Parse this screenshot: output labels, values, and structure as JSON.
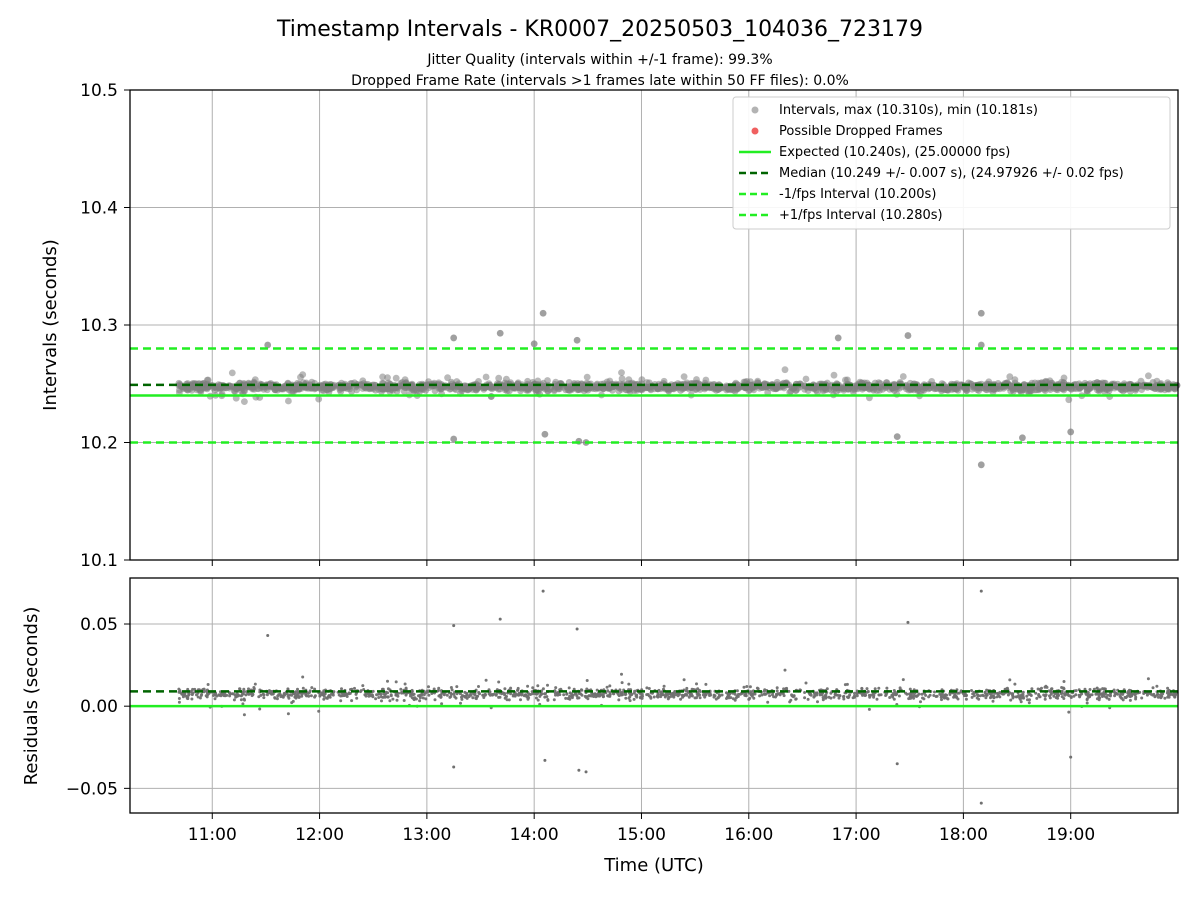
{
  "chart_data": [
    {
      "type": "scatter",
      "title": "Timestamp Intervals - KR0007_20250503_104036_723179",
      "subtitle_lines": [
        "Jitter Quality (intervals within +/-1 frame): 99.3%",
        "Dropped Frame Rate (intervals >1 frames late within 50 FF files): 0.0%"
      ],
      "xlabel": "",
      "ylabel": "Intervals (seconds)",
      "xlim": [
        "10:14",
        "20:00"
      ],
      "ylim": [
        10.1,
        10.5
      ],
      "yticks": [
        10.1,
        10.2,
        10.3,
        10.4,
        10.5
      ],
      "ytick_labels": [
        "10.1",
        "10.2",
        "10.3",
        "10.4",
        "10.5"
      ],
      "xticks": [
        "11:00",
        "12:00",
        "13:00",
        "14:00",
        "15:00",
        "16:00",
        "17:00",
        "18:00",
        "19:00"
      ],
      "grid": true,
      "legend_position": "top-right",
      "series": [
        {
          "name": "Intervals, max (10.310s), min (10.181s)",
          "kind": "scatter",
          "color": "#808080",
          "data_range": {
            "x_start": "10:41",
            "x_end": "20:00"
          },
          "typical_band": [
            10.235,
            10.26
          ],
          "outliers": [
            {
              "x": "14:05",
              "y": 10.31
            },
            {
              "x": "18:10",
              "y": 10.31
            },
            {
              "x": "18:10",
              "y": 10.181
            },
            {
              "x": "13:41",
              "y": 10.293
            },
            {
              "x": "17:29",
              "y": 10.291
            },
            {
              "x": "16:50",
              "y": 10.289
            },
            {
              "x": "13:15",
              "y": 10.289
            },
            {
              "x": "14:24",
              "y": 10.287
            },
            {
              "x": "14:00",
              "y": 10.284
            },
            {
              "x": "18:10",
              "y": 10.283
            },
            {
              "x": "11:31",
              "y": 10.283
            },
            {
              "x": "14:25",
              "y": 10.201
            },
            {
              "x": "14:29",
              "y": 10.2
            },
            {
              "x": "13:15",
              "y": 10.203
            },
            {
              "x": "17:23",
              "y": 10.205
            },
            {
              "x": "18:33",
              "y": 10.204
            },
            {
              "x": "14:06",
              "y": 10.207
            },
            {
              "x": "19:00",
              "y": 10.209
            }
          ]
        },
        {
          "name": "Possible Dropped Frames",
          "kind": "scatter",
          "color": "#f06060",
          "points": []
        },
        {
          "name": "Expected (10.240s), (25.00000 fps)",
          "kind": "hline",
          "y": 10.24,
          "color": "#22ee22",
          "style": "solid"
        },
        {
          "name": "Median (10.249 +/- 0.007 s), (24.97926 +/- 0.02 fps)",
          "kind": "hline",
          "y": 10.249,
          "color": "#006400",
          "style": "dashed"
        },
        {
          "name": "-1/fps Interval (10.200s)",
          "kind": "hline",
          "y": 10.2,
          "color": "#22ee22",
          "style": "dashed"
        },
        {
          "name": "+1/fps Interval (10.280s)",
          "kind": "hline",
          "y": 10.28,
          "color": "#22ee22",
          "style": "dashed"
        }
      ]
    },
    {
      "type": "scatter",
      "xlabel": "Time (UTC)",
      "ylabel": "Residuals (seconds)",
      "xlim": [
        "10:14",
        "20:00"
      ],
      "ylim": [
        -0.065,
        0.078
      ],
      "yticks": [
        -0.05,
        0.0,
        0.05
      ],
      "ytick_labels": [
        "−0.05",
        "0.00",
        "0.05"
      ],
      "xticks": [
        "11:00",
        "12:00",
        "13:00",
        "14:00",
        "15:00",
        "16:00",
        "17:00",
        "18:00",
        "19:00"
      ],
      "grid": true,
      "series": [
        {
          "kind": "scatter",
          "color": "#707070",
          "data_range": {
            "x_start": "10:41",
            "x_end": "20:00"
          },
          "typical_band": [
            -0.005,
            0.02
          ],
          "outliers": [
            {
              "x": "14:05",
              "y": 0.07
            },
            {
              "x": "18:10",
              "y": 0.07
            },
            {
              "x": "18:10",
              "y": -0.059
            },
            {
              "x": "13:41",
              "y": 0.053
            },
            {
              "x": "17:29",
              "y": 0.051
            },
            {
              "x": "13:15",
              "y": 0.049
            },
            {
              "x": "14:24",
              "y": 0.047
            },
            {
              "x": "11:31",
              "y": 0.043
            },
            {
              "x": "14:25",
              "y": -0.039
            },
            {
              "x": "14:29",
              "y": -0.04
            },
            {
              "x": "13:15",
              "y": -0.037
            },
            {
              "x": "17:23",
              "y": -0.035
            },
            {
              "x": "19:00",
              "y": -0.031
            },
            {
              "x": "14:06",
              "y": -0.033
            }
          ]
        },
        {
          "kind": "hline",
          "y": 0.0,
          "color": "#22ee22",
          "style": "solid"
        },
        {
          "kind": "hline",
          "y": 0.009,
          "color": "#006400",
          "style": "dashed"
        }
      ]
    }
  ]
}
